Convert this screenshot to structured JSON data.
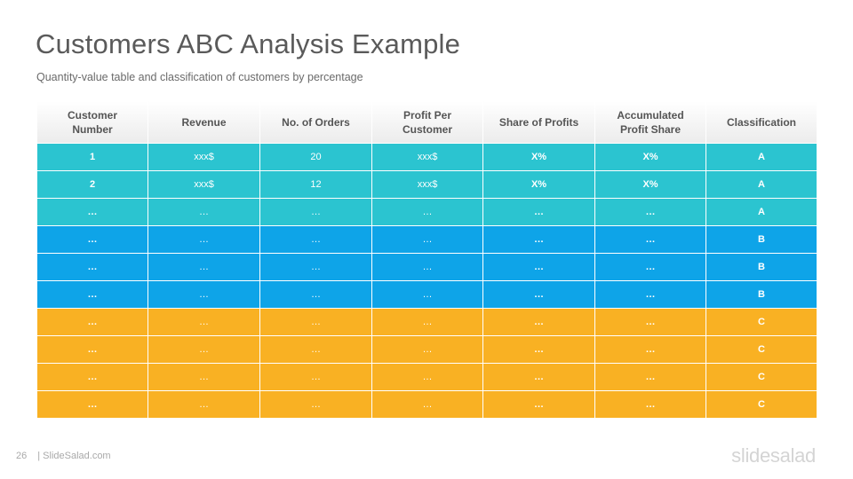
{
  "slide": {
    "title": "Customers ABC Analysis Example",
    "subtitle": "Quantity-value table and classification  of customers by percentage"
  },
  "table": {
    "headers": [
      "Customer\nNumber",
      "Revenue",
      "No. of Orders",
      "Profit Per\nCustomer",
      "Share of Profits",
      "Accumulated\nProfit Share",
      "Classification"
    ],
    "rows": [
      {
        "cls": "a",
        "cells": [
          "1",
          "xxx$",
          "20",
          "xxx$",
          "X%",
          "X%",
          "A"
        ]
      },
      {
        "cls": "a",
        "cells": [
          "2",
          "xxx$",
          "12",
          "xxx$",
          "X%",
          "X%",
          "A"
        ]
      },
      {
        "cls": "a",
        "cells": [
          "…",
          "…",
          "…",
          "…",
          "…",
          "…",
          "A"
        ]
      },
      {
        "cls": "b",
        "cells": [
          "…",
          "…",
          "…",
          "…",
          "…",
          "…",
          "B"
        ]
      },
      {
        "cls": "b",
        "cells": [
          "…",
          "…",
          "…",
          "…",
          "…",
          "…",
          "B"
        ]
      },
      {
        "cls": "b",
        "cells": [
          "…",
          "…",
          "…",
          "…",
          "…",
          "…",
          "B"
        ]
      },
      {
        "cls": "c",
        "cells": [
          "…",
          "…",
          "…",
          "…",
          "…",
          "…",
          "C"
        ]
      },
      {
        "cls": "c",
        "cells": [
          "…",
          "…",
          "…",
          "…",
          "…",
          "…",
          "C"
        ]
      },
      {
        "cls": "c",
        "cells": [
          "…",
          "…",
          "…",
          "…",
          "…",
          "…",
          "C"
        ]
      },
      {
        "cls": "c",
        "cells": [
          "…",
          "…",
          "…",
          "…",
          "…",
          "…",
          "C"
        ]
      }
    ]
  },
  "colors": {
    "class_a": "#2bc4d0",
    "class_b": "#0ea4e8",
    "class_c": "#f9b123"
  },
  "footer": {
    "page_number": "26",
    "site": "| SlideSalad.com",
    "brand": "slidesalad"
  }
}
